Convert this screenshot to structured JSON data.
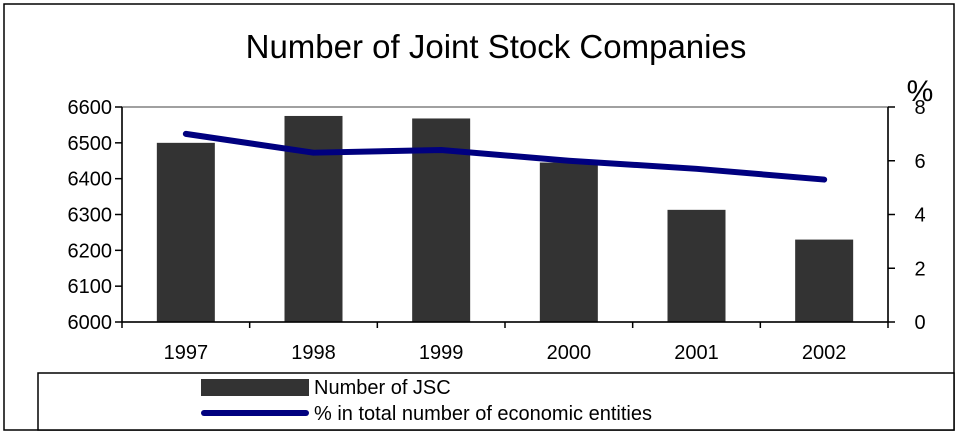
{
  "chart_data": {
    "type": "bar",
    "title": "Number of Joint Stock Companies",
    "categories": [
      "1997",
      "1998",
      "1999",
      "2000",
      "2001",
      "2002"
    ],
    "series": [
      {
        "name": "Number of JSC",
        "type": "bar",
        "axis": "left",
        "color": "#333333",
        "values": [
          6500,
          6575,
          6568,
          6445,
          6313,
          6230
        ]
      },
      {
        "name": "% in total number of economic entities",
        "type": "line",
        "axis": "right",
        "color": "#00007f",
        "values": [
          7.0,
          6.3,
          6.4,
          6.0,
          5.7,
          5.3
        ]
      }
    ],
    "y_left": {
      "min": 6000,
      "max": 6600,
      "ticks": [
        "6000",
        "6100",
        "6200",
        "6300",
        "6400",
        "6500",
        "6600"
      ]
    },
    "y_right": {
      "min": 0,
      "max": 8,
      "label": "%",
      "ticks": [
        "0",
        "2",
        "4",
        "6",
        "8"
      ]
    },
    "grid": false,
    "legend_position": "bottom"
  }
}
